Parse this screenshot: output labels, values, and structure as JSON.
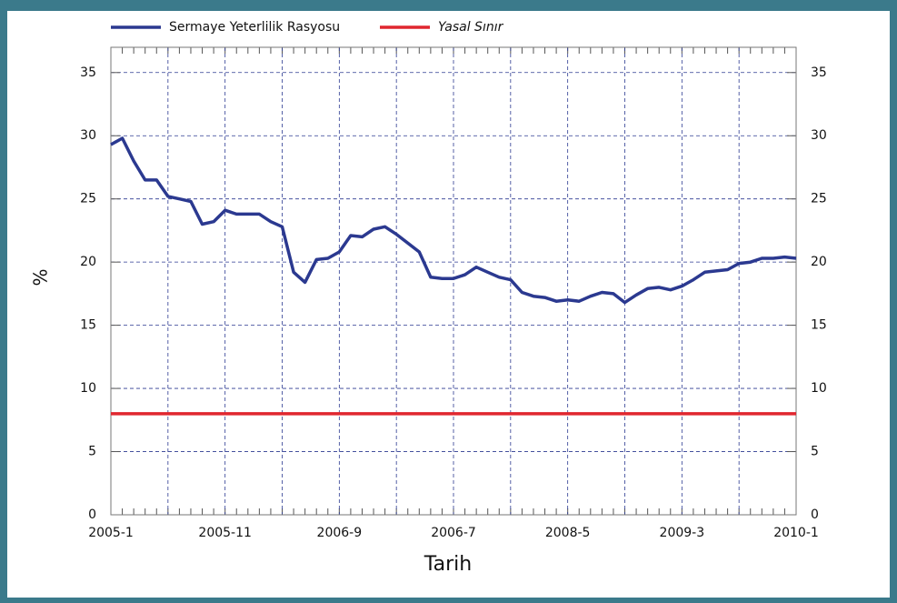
{
  "chart_data": {
    "type": "line",
    "xlabel": "Tarih",
    "ylabel": "%",
    "categories": [
      "2005-1",
      null,
      null,
      null,
      null,
      null,
      null,
      null,
      null,
      null,
      "2005-11",
      null,
      null,
      null,
      null,
      null,
      null,
      null,
      null,
      null,
      "2006-9",
      null,
      null,
      null,
      null,
      null,
      null,
      null,
      null,
      null,
      "2006-7",
      null,
      null,
      null,
      null,
      null,
      null,
      null,
      null,
      null,
      "2008-5",
      null,
      null,
      null,
      null,
      null,
      null,
      null,
      null,
      null,
      "2009-3",
      null,
      null,
      null,
      null,
      null,
      null,
      null,
      null,
      null,
      "2010-1"
    ],
    "series": [
      {
        "name": "Sermaye Yeterlilik Rasyosu",
        "color": "#2b3990",
        "values": [
          29.3,
          29.8,
          28.0,
          26.5,
          26.5,
          25.2,
          25.0,
          24.8,
          23.0,
          23.2,
          24.1,
          23.8,
          23.8,
          23.8,
          23.2,
          22.8,
          19.2,
          18.4,
          20.2,
          20.3,
          20.8,
          22.1,
          22.0,
          22.6,
          22.8,
          22.2,
          21.5,
          20.8,
          18.8,
          18.7,
          18.7,
          19.0,
          19.6,
          19.2,
          18.8,
          18.6,
          17.6,
          17.3,
          17.2,
          16.9,
          17.0,
          16.9,
          17.3,
          17.6,
          17.5,
          16.8,
          17.4,
          17.9,
          18.0,
          17.8,
          18.1,
          18.6,
          19.2,
          19.3,
          19.4,
          19.9,
          20.0,
          20.3,
          20.3,
          20.4,
          20.3
        ]
      },
      {
        "name": "Yasal Sınır",
        "color": "#e0262f",
        "values": [
          8,
          8,
          8,
          8,
          8,
          8,
          8,
          8,
          8,
          8,
          8,
          8,
          8,
          8,
          8,
          8,
          8,
          8,
          8,
          8,
          8,
          8,
          8,
          8,
          8,
          8,
          8,
          8,
          8,
          8,
          8,
          8,
          8,
          8,
          8,
          8,
          8,
          8,
          8,
          8,
          8,
          8,
          8,
          8,
          8,
          8,
          8,
          8,
          8,
          8,
          8,
          8,
          8,
          8,
          8,
          8,
          8,
          8,
          8,
          8,
          8
        ]
      }
    ],
    "ylim": [
      0,
      37
    ],
    "yticks": [
      0,
      5,
      10,
      15,
      20,
      25,
      30,
      35
    ],
    "grid": true
  }
}
